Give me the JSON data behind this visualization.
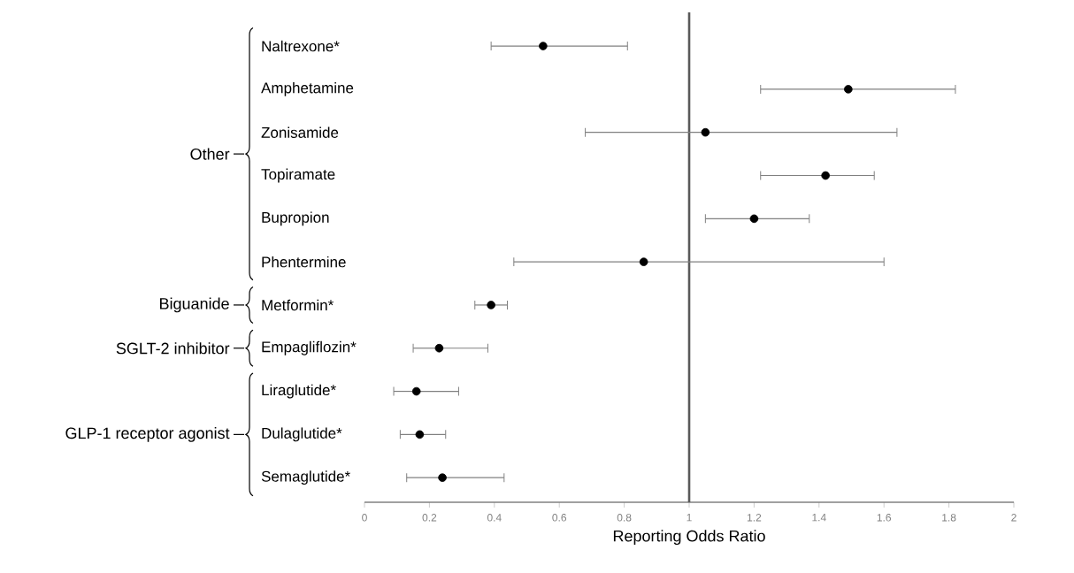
{
  "chart_data": {
    "type": "scatter",
    "orientation": "horizontal",
    "xlabel": "Reporting Odds Ratio",
    "categories": [
      "Naltrexone*",
      "Amphetamine",
      "Zonisamide",
      "Topiramate",
      "Bupropion",
      "Phentermine",
      "Metformin*",
      "Empagliflozin*",
      "Liraglutide*",
      "Dulaglutide*",
      "Semaglutide*"
    ],
    "values": [
      0.55,
      1.49,
      1.05,
      1.42,
      1.2,
      0.86,
      0.39,
      0.23,
      0.16,
      0.17,
      0.24
    ],
    "errors": [
      [
        0.39,
        0.81
      ],
      [
        1.22,
        1.82
      ],
      [
        0.68,
        1.64
      ],
      [
        1.22,
        1.57
      ],
      [
        1.05,
        1.37
      ],
      [
        0.46,
        1.6
      ],
      [
        0.34,
        0.44
      ],
      [
        0.15,
        0.38
      ],
      [
        0.09,
        0.29
      ],
      [
        0.11,
        0.25
      ],
      [
        0.13,
        0.43
      ]
    ],
    "color": "#000000",
    "marker": "circle",
    "xlim": [
      0,
      2
    ],
    "xticks": [
      0,
      0.2,
      0.4,
      0.6,
      0.8,
      1,
      1.2,
      1.4,
      1.6,
      1.8,
      2
    ],
    "ref_lines": [
      {
        "axis": "x",
        "value": 1,
        "color": "#595959"
      }
    ],
    "annotations": [
      "Other",
      "Biguanide",
      "SGLT-2 inhibitor",
      "GLP-1 receptor agonist"
    ],
    "grid": false,
    "legend": false
  }
}
